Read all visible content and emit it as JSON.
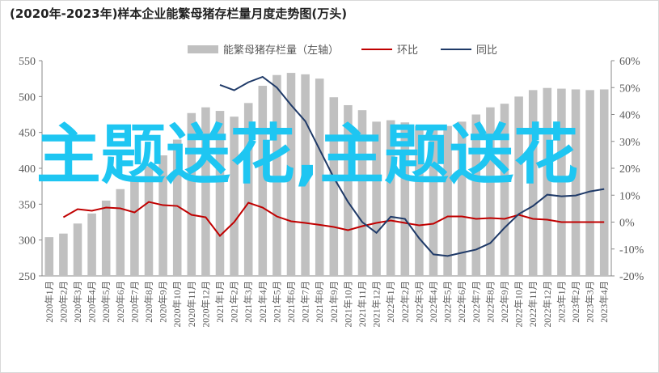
{
  "chart_data": {
    "type": "combo",
    "title": "(2020年-2023年)样本企业能繁母猪存栏量月度走势图(万头)",
    "overlay": "主题送花,主题送花",
    "categories": [
      "2020年1月",
      "2020年2月",
      "2020年3月",
      "2020年4月",
      "2020年5月",
      "2020年6月",
      "2020年7月",
      "2020年8月",
      "2020年9月",
      "2020年10月",
      "2020年11月",
      "2020年12月",
      "2021年1月",
      "2021年2月",
      "2021年3月",
      "2021年4月",
      "2021年5月",
      "2021年6月",
      "2021年7月",
      "2021年8月",
      "2021年9月",
      "2021年10月",
      "2021年11月",
      "2021年12月",
      "2022年1月",
      "2022年2月",
      "2022年3月",
      "2022年4月",
      "2022年5月",
      "2022年6月",
      "2022年7月",
      "2022年8月",
      "2022年9月",
      "2022年10月",
      "2022年11月",
      "2022年12月",
      "2023年1月",
      "2023年2月",
      "2023年3月",
      "2023年4月"
    ],
    "series": [
      {
        "name": "能繁母猪存栏量（左轴）",
        "type": "bar",
        "color": "#c0c0c0",
        "values": [
          304,
          309,
          323,
          337,
          355,
          371,
          388,
          403,
          418,
          440,
          477,
          485,
          480,
          472,
          491,
          515,
          530,
          533,
          531,
          525,
          499,
          488,
          481,
          465,
          467,
          464,
          459,
          457,
          459,
          465,
          475,
          485,
          490,
          500,
          509,
          512,
          511,
          510,
          509,
          510
        ]
      },
      {
        "name": "环比",
        "type": "line",
        "axis": "y2",
        "color": "#c00000",
        "values": [
          null,
          1.8,
          4.8,
          4.2,
          5.4,
          5.1,
          3.6,
          7.5,
          6.3,
          6,
          2.7,
          1.8,
          -5.1,
          0,
          7.2,
          5.4,
          2.1,
          0.3,
          -0.3,
          -1,
          -1.8,
          -3,
          -1.5,
          -0.3,
          0.6,
          -0.3,
          -1.2,
          -0.6,
          2.1,
          2.1,
          1.2,
          1.5,
          1.2,
          2.7,
          1.2,
          0.9,
          0,
          0,
          0,
          0
        ]
      },
      {
        "name": "同比",
        "type": "line",
        "axis": "y2",
        "color": "#1f3a68",
        "values": [
          null,
          null,
          null,
          null,
          null,
          null,
          null,
          null,
          null,
          null,
          null,
          null,
          51,
          49,
          52,
          54,
          50,
          43.5,
          37.5,
          27,
          16.5,
          7.5,
          0,
          -4,
          2,
          1.2,
          -6,
          -12,
          -12.6,
          -11.4,
          -10.2,
          -7.8,
          -2.1,
          3,
          6,
          10.2,
          9.6,
          9.9,
          11.4,
          12.3
        ]
      }
    ],
    "ylim": [
      250,
      550
    ],
    "yticks": [
      250,
      300,
      350,
      400,
      450,
      500,
      550
    ],
    "y2lim": [
      -20,
      60
    ],
    "y2ticks": [
      {
        "value": -20,
        "label": "-20%"
      },
      {
        "value": -10,
        "label": "-10%"
      },
      {
        "value": 0,
        "label": "0%"
      },
      {
        "value": 10,
        "label": "10%"
      },
      {
        "value": 20,
        "label": "20%"
      },
      {
        "value": 30,
        "label": "30%"
      },
      {
        "value": 40,
        "label": "40%"
      },
      {
        "value": 50,
        "label": "50%"
      },
      {
        "value": 60,
        "label": "60%"
      }
    ]
  }
}
